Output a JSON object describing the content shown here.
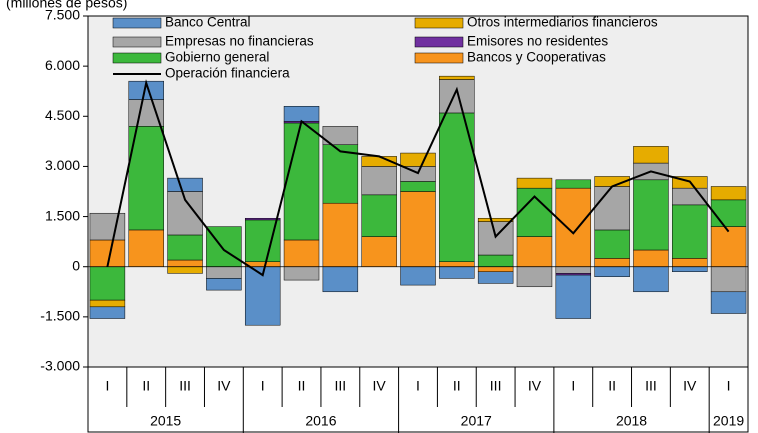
{
  "chart_data": {
    "type": "bar",
    "subtitle": "(millones de pesos)",
    "categories": [
      "I",
      "II",
      "III",
      "IV",
      "I",
      "II",
      "III",
      "IV",
      "I",
      "II",
      "III",
      "IV",
      "I",
      "II",
      "III",
      "IV",
      "I"
    ],
    "years": [
      "2015",
      null,
      null,
      null,
      "2016",
      null,
      null,
      null,
      "2017",
      null,
      null,
      null,
      "2018",
      null,
      null,
      null,
      "2019"
    ],
    "series": [
      {
        "name": "Banco Central",
        "color": "#5a8fc8",
        "values": [
          -350,
          550,
          400,
          -350,
          -1750,
          450,
          -750,
          0,
          -550,
          -350,
          -350,
          0,
          -1300,
          -300,
          -750,
          -150,
          -650
        ]
      },
      {
        "name": "Otros intermediarios financieros",
        "color": "#e6ac00",
        "values": [
          -200,
          0,
          -200,
          0,
          0,
          0,
          0,
          300,
          400,
          100,
          100,
          300,
          0,
          300,
          500,
          350,
          400
        ]
      },
      {
        "name": "Empresas no financieras",
        "color": "#a6a6a6",
        "values": [
          800,
          800,
          1300,
          -350,
          0,
          -400,
          550,
          850,
          450,
          1000,
          1000,
          -600,
          -200,
          1300,
          500,
          500,
          -750
        ]
      },
      {
        "name": "Emisores no residentes",
        "color": "#7030a0",
        "values": [
          0,
          0,
          0,
          0,
          50,
          50,
          0,
          0,
          0,
          0,
          0,
          0,
          -50,
          0,
          0,
          0,
          0
        ]
      },
      {
        "name": "Gobierno general",
        "color": "#3cb83c",
        "values": [
          -1000,
          3100,
          750,
          1200,
          1250,
          3500,
          1750,
          1250,
          300,
          4450,
          350,
          1450,
          250,
          850,
          2100,
          1600,
          800
        ]
      },
      {
        "name": "Bancos y Cooperativas",
        "color": "#f7941d",
        "values": [
          800,
          1100,
          200,
          0,
          150,
          800,
          1900,
          900,
          2250,
          150,
          -150,
          900,
          2350,
          250,
          500,
          250,
          1200
        ]
      },
      {
        "name": "Operación financiera",
        "type": "line",
        "color": "#000000",
        "values": [
          0,
          5500,
          2000,
          500,
          -250,
          4350,
          3450,
          3300,
          2800,
          5300,
          900,
          2100,
          1000,
          2400,
          2850,
          2550,
          1050
        ]
      }
    ],
    "ylim": [
      -3000,
      7500
    ],
    "yticks": [
      {
        "value": -3000,
        "label": "-3.000"
      },
      {
        "value": -1500,
        "label": "-1.500"
      },
      0,
      {
        "value": 1500,
        "label": "1.500"
      },
      {
        "value": 3000,
        "label": "3.000"
      },
      {
        "value": 4500,
        "label": "4.500"
      },
      {
        "value": 6000,
        "label": "6.000"
      },
      {
        "value": 7500,
        "label": "7.500"
      }
    ]
  }
}
